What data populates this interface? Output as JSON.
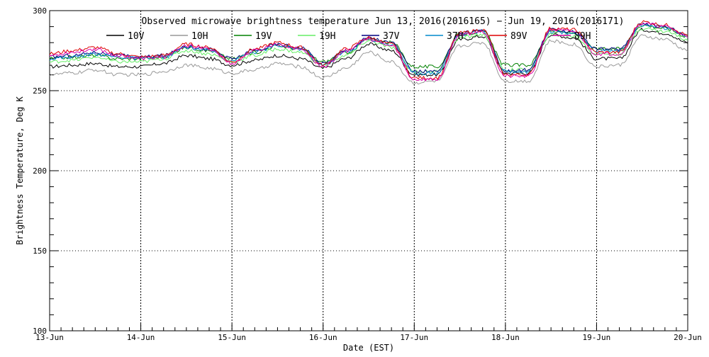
{
  "chart_data": {
    "type": "line",
    "title": "Observed microwave brightness temperature Jun 13, 2016(2016165) − Jun 19, 2016(2016171)",
    "xlabel": "Date (EST)",
    "ylabel": "Brightness Temperature, Deg K",
    "ylim": [
      100,
      300
    ],
    "xlim": [
      0,
      7
    ],
    "y_ticks": [
      100,
      150,
      200,
      250,
      300
    ],
    "x_tick_labels": [
      "13-Jun",
      "14-Jun",
      "15-Jun",
      "16-Jun",
      "17-Jun",
      "18-Jun",
      "19-Jun",
      "20-Jun"
    ],
    "grid": true,
    "legend_position": "top",
    "x": [
      0,
      0.25,
      0.5,
      0.75,
      1,
      1.25,
      1.5,
      1.75,
      2,
      2.25,
      2.5,
      2.75,
      3,
      3.25,
      3.5,
      3.75,
      4,
      4.25,
      4.5,
      4.75,
      5,
      5.25,
      5.5,
      5.75,
      6,
      6.25,
      6.5,
      6.75,
      7
    ],
    "series": [
      {
        "name": "10V",
        "color": "#000000",
        "values": [
          265,
          266,
          267,
          265,
          265,
          267,
          272,
          270,
          266,
          269,
          272,
          270,
          264,
          270,
          279,
          275,
          260,
          260,
          282,
          284,
          261,
          261,
          285,
          283,
          270,
          270,
          288,
          286,
          280
        ]
      },
      {
        "name": "10H",
        "color": "#999999",
        "values": [
          260,
          261,
          263,
          260,
          260,
          262,
          266,
          264,
          261,
          263,
          267,
          265,
          258,
          264,
          274,
          268,
          255,
          256,
          278,
          280,
          256,
          256,
          281,
          279,
          265,
          266,
          284,
          282,
          275
        ]
      },
      {
        "name": "19V",
        "color": "#008000",
        "values": [
          270,
          271,
          272,
          270,
          270,
          271,
          277,
          275,
          270,
          274,
          278,
          276,
          268,
          274,
          282,
          280,
          265,
          265,
          285,
          287,
          266,
          266,
          287,
          286,
          276,
          276,
          291,
          289,
          284
        ]
      },
      {
        "name": "19H",
        "color": "#66ee66",
        "values": [
          268,
          269,
          271,
          268,
          268,
          270,
          275,
          273,
          268,
          272,
          276,
          274,
          266,
          272,
          281,
          277,
          262,
          262,
          283,
          285,
          263,
          263,
          285,
          284,
          273,
          273,
          289,
          287,
          282
        ]
      },
      {
        "name": "37V",
        "color": "#000080",
        "values": [
          271,
          272,
          274,
          272,
          271,
          272,
          278,
          276,
          270,
          275,
          279,
          277,
          267,
          275,
          283,
          280,
          262,
          262,
          286,
          288,
          262,
          263,
          288,
          287,
          276,
          276,
          292,
          290,
          285
        ]
      },
      {
        "name": "37H",
        "color": "#0088cc",
        "values": [
          270,
          271,
          273,
          271,
          270,
          271,
          277,
          275,
          269,
          274,
          278,
          276,
          266,
          274,
          282,
          279,
          261,
          261,
          285,
          287,
          262,
          262,
          287,
          286,
          275,
          275,
          291,
          289,
          284
        ]
      },
      {
        "name": "89V",
        "color": "#dd0000",
        "values": [
          273,
          275,
          277,
          273,
          271,
          272,
          279,
          277,
          268,
          276,
          280,
          277,
          266,
          276,
          283,
          279,
          258,
          258,
          286,
          288,
          260,
          260,
          289,
          288,
          274,
          274,
          293,
          291,
          285
        ]
      },
      {
        "name": "89H",
        "color": "#dd00aa",
        "values": [
          272,
          274,
          276,
          272,
          270,
          271,
          278,
          276,
          267,
          275,
          279,
          276,
          265,
          275,
          282,
          278,
          257,
          257,
          285,
          287,
          259,
          259,
          288,
          287,
          273,
          273,
          292,
          290,
          284
        ]
      }
    ]
  }
}
